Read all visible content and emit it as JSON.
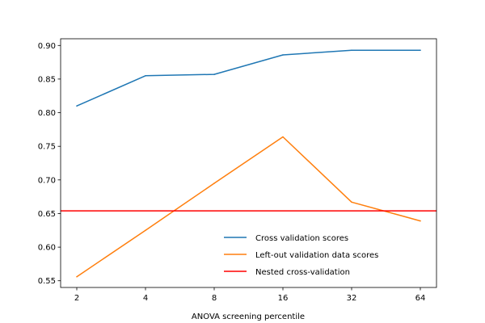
{
  "chart_data": {
    "type": "line",
    "title": "",
    "xlabel": "ANOVA screening percentile",
    "ylabel": "",
    "x": [
      2,
      4,
      8,
      16,
      32,
      64
    ],
    "x_scale": "log2",
    "xticks": [
      "2",
      "4",
      "8",
      "16",
      "32",
      "64"
    ],
    "ylim": [
      0.54,
      0.91
    ],
    "yticks": [
      "0.55",
      "0.60",
      "0.65",
      "0.70",
      "0.75",
      "0.80",
      "0.85",
      "0.90"
    ],
    "series": [
      {
        "name": "Cross validation scores",
        "color": "#1f77b4",
        "values": [
          0.81,
          0.855,
          0.857,
          0.886,
          0.893,
          0.893
        ]
      },
      {
        "name": "Left-out validation data scores",
        "color": "#ff7f0e",
        "values": [
          0.556,
          0.625,
          0.695,
          0.764,
          0.667,
          0.639
        ]
      }
    ],
    "hlines": [
      {
        "name": "Nested cross-validation",
        "color": "#ff0000",
        "value": 0.654
      }
    ],
    "grid": false,
    "legend_position": "lower-right"
  }
}
